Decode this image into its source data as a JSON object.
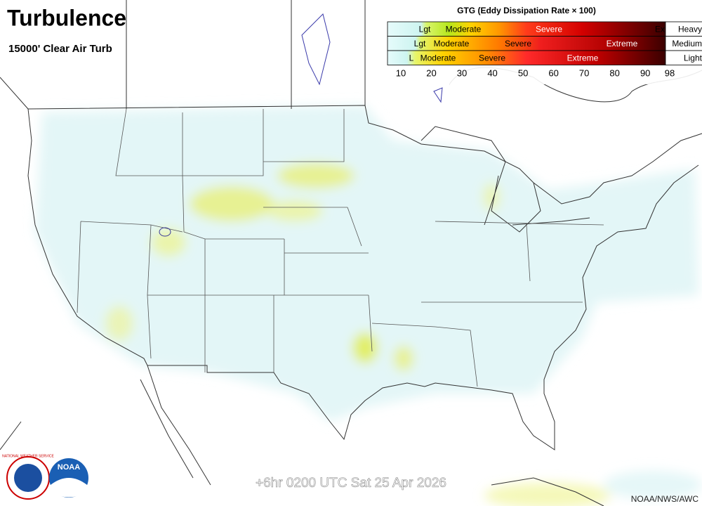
{
  "header": {
    "title": "Turbulence",
    "subtitle": "15000' Clear Air Turb"
  },
  "legend": {
    "title": "GTG (Eddy Dissipation Rate × 100)",
    "rows": [
      {
        "aircraft": "Heavy",
        "labels": [
          "Lgt",
          "Moderate",
          "Severe",
          "Ex"
        ]
      },
      {
        "aircraft": "Medium",
        "labels": [
          "Lgt",
          "Moderate",
          "Severe",
          "Extreme"
        ]
      },
      {
        "aircraft": "Light",
        "labels": [
          "L",
          "Moderate",
          "Severe",
          "Extreme"
        ]
      }
    ],
    "scale": [
      10,
      20,
      30,
      40,
      50,
      60,
      70,
      80,
      90,
      98
    ]
  },
  "footer": {
    "valid_time": "+6hr 0200 UTC Sat 25 Apr 2026",
    "credit": "NOAA/NWS/AWC"
  },
  "logos": [
    "NATIONAL WEATHER SERVICE",
    "NOAA"
  ]
}
